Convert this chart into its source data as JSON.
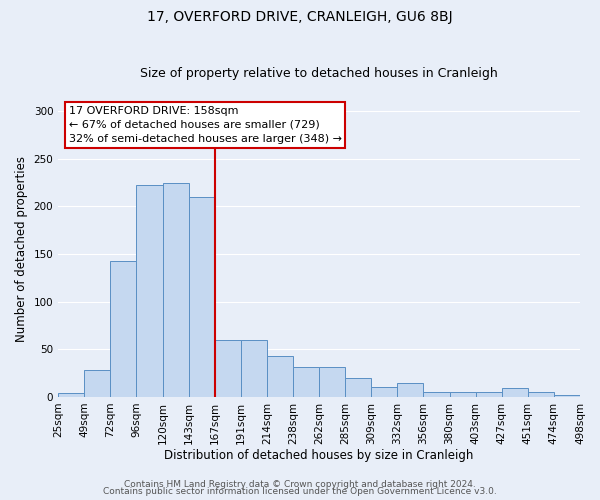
{
  "title": "17, OVERFORD DRIVE, CRANLEIGH, GU6 8BJ",
  "subtitle": "Size of property relative to detached houses in Cranleigh",
  "xlabel": "Distribution of detached houses by size in Cranleigh",
  "ylabel": "Number of detached properties",
  "bin_labels": [
    "25sqm",
    "49sqm",
    "72sqm",
    "96sqm",
    "120sqm",
    "143sqm",
    "167sqm",
    "191sqm",
    "214sqm",
    "238sqm",
    "262sqm",
    "285sqm",
    "309sqm",
    "332sqm",
    "356sqm",
    "380sqm",
    "403sqm",
    "427sqm",
    "451sqm",
    "474sqm",
    "498sqm"
  ],
  "bar_values": [
    4,
    28,
    143,
    222,
    224,
    210,
    60,
    60,
    43,
    31,
    31,
    20,
    10,
    15,
    5,
    5,
    5,
    9,
    5,
    2
  ],
  "bar_color": "#c5d8f0",
  "bar_edge_color": "#5a8fc4",
  "vline_x_bin": 6,
  "vline_color": "#cc0000",
  "n_bars": 20,
  "annotation_title": "17 OVERFORD DRIVE: 158sqm",
  "annotation_line1": "← 67% of detached houses are smaller (729)",
  "annotation_line2": "32% of semi-detached houses are larger (348) →",
  "annotation_box_color": "#cc0000",
  "ylim": [
    0,
    310
  ],
  "yticks": [
    0,
    50,
    100,
    150,
    200,
    250,
    300
  ],
  "footer1": "Contains HM Land Registry data © Crown copyright and database right 2024.",
  "footer2": "Contains public sector information licensed under the Open Government Licence v3.0.",
  "bg_color": "#e8eef8",
  "plot_bg_color": "#e8eef8",
  "grid_color": "#ffffff",
  "title_fontsize": 10,
  "subtitle_fontsize": 9,
  "axis_label_fontsize": 8.5,
  "tick_fontsize": 7.5,
  "annotation_fontsize": 8,
  "footer_fontsize": 6.5
}
